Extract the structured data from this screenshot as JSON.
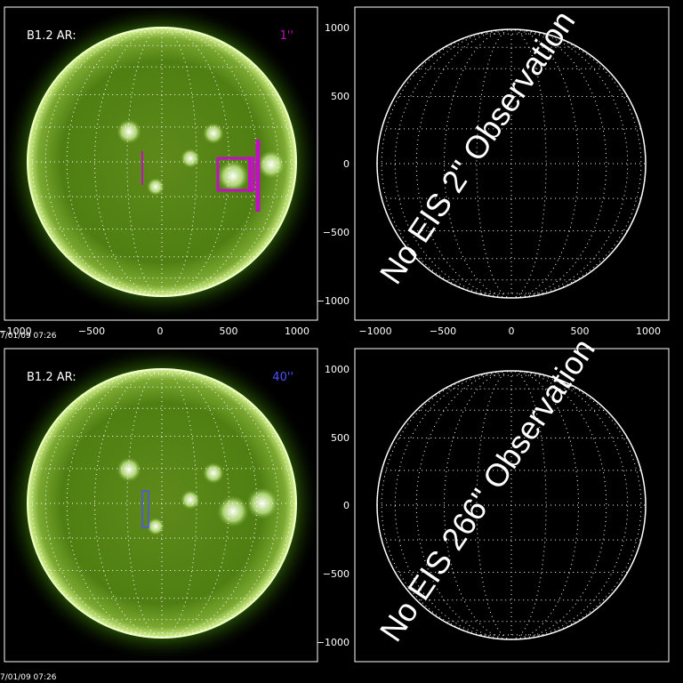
{
  "panels": [
    {
      "id": "top-left",
      "label": "B1.2 AR:",
      "slit": "1''",
      "slit_color": "#c010c0",
      "timestamp": "7/01/09 07:26"
    },
    {
      "id": "top-right",
      "message": "No EIS 2\" Observation"
    },
    {
      "id": "bottom-left",
      "label": "B1.2 AR:",
      "slit": "40''",
      "slit_color": "#5050ff",
      "timestamp": "7/01/09 07:26"
    },
    {
      "id": "bottom-right",
      "message": "No EIS 266\" Observation"
    }
  ],
  "axis_ticks": {
    "x": [
      "−1000",
      "−500",
      "0",
      "500",
      "1000"
    ],
    "y": [
      "1000",
      "500",
      "0",
      "−500",
      "−1000"
    ]
  },
  "colors": {
    "sun_core": "#6b8a1e",
    "sun_mid": "#4f7a10",
    "limb": "#e8ffb0",
    "grid": "#ffffff",
    "frame": "#ffffff"
  }
}
